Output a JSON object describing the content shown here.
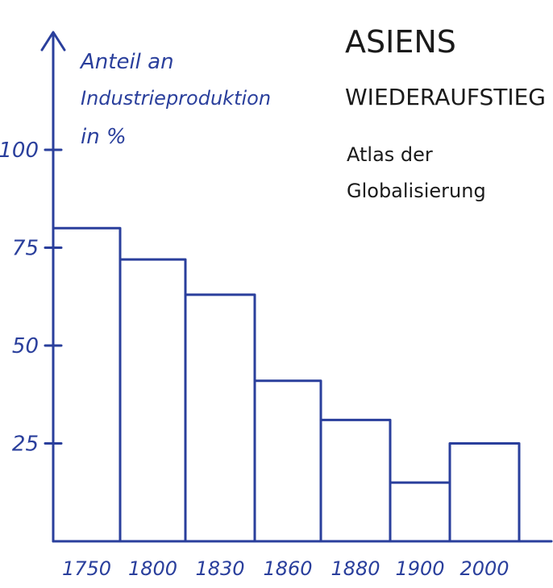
{
  "chart_data": {
    "type": "bar",
    "title_line1": "ASIENS",
    "title_line2": "WIEDERAUFSTIEG",
    "subtitle_line1": "Atlas der",
    "subtitle_line2": "Globalisierung",
    "ylabel_line1": "Anteil an",
    "ylabel_line2": "Industrieproduktion",
    "ylabel_line3": "in %",
    "categories": [
      "1750",
      "1800",
      "1830",
      "1860",
      "1880",
      "1900",
      "2000"
    ],
    "values": [
      80,
      72,
      63,
      41,
      31,
      15,
      25
    ],
    "yticks": [
      25,
      50,
      75,
      100
    ],
    "ylim": [
      0,
      100
    ],
    "grid": false,
    "colors": {
      "ink": "#2a3f9c",
      "title": "#1a1a1a"
    }
  }
}
